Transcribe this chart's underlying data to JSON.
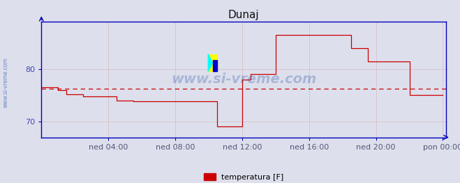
{
  "title": "Dunaj",
  "title_fontsize": 11,
  "line_color": "#cc0000",
  "dashed_avg_color": "#cc0000",
  "avg_value": 76.3,
  "ylim": [
    67.0,
    89.0
  ],
  "yticks": [
    70,
    80
  ],
  "bg_color": "#dde0ec",
  "grid_color": "#cc6666",
  "xlabel_color": "#555577",
  "ylabel_color": "#4444bb",
  "axis_color": "#0000bb",
  "watermark_text": "www.si-vreme.com",
  "watermark_side": "www.si-vreme.com",
  "legend_label": "temperatura [F]",
  "legend_color": "#cc0000",
  "x_tick_labels": [
    "ned 04:00",
    "ned 08:00",
    "ned 12:00",
    "ned 16:00",
    "ned 20:00",
    "pon 00:00"
  ],
  "x_tick_positions": [
    4,
    8,
    12,
    16,
    20,
    24
  ],
  "time_data": [
    0,
    0.5,
    1.0,
    1.5,
    2.0,
    2.5,
    3.0,
    3.5,
    4.0,
    4.5,
    5.0,
    5.5,
    6.0,
    6.5,
    7.0,
    7.5,
    8.0,
    8.5,
    9.0,
    9.5,
    10.0,
    10.5,
    11.0,
    11.5,
    12.0,
    12.5,
    13.0,
    13.5,
    14.0,
    14.5,
    15.0,
    15.5,
    16.0,
    16.5,
    17.0,
    17.5,
    18.0,
    18.5,
    19.0,
    19.5,
    20.0,
    20.5,
    21.0,
    21.5,
    22.0,
    22.5,
    23.0,
    23.5,
    24.0
  ],
  "temp_data": [
    76.5,
    76.5,
    76.0,
    75.2,
    75.2,
    74.8,
    74.8,
    74.8,
    74.8,
    74.0,
    74.0,
    73.8,
    73.8,
    73.8,
    73.8,
    73.8,
    73.8,
    73.8,
    73.8,
    73.8,
    73.8,
    69.0,
    69.0,
    69.0,
    78.0,
    79.0,
    79.0,
    79.0,
    86.5,
    86.5,
    86.5,
    86.5,
    86.5,
    86.5,
    86.5,
    86.5,
    86.5,
    84.0,
    84.0,
    81.5,
    81.5,
    81.5,
    81.5,
    81.5,
    75.0,
    75.0,
    75.0,
    75.0,
    75.0
  ]
}
